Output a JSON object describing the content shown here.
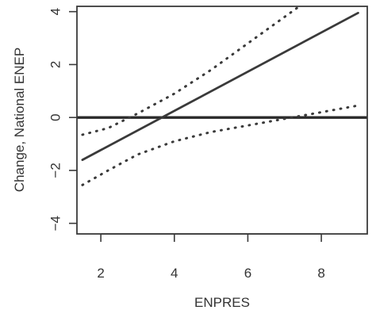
{
  "chart_data": {
    "type": "line",
    "title": "",
    "xlabel": "ENPRES",
    "ylabel": "Change, National ENEP",
    "xlim": [
      1.35,
      9.25
    ],
    "ylim": [
      -4.4,
      4.2
    ],
    "x_ticks": [
      2,
      4,
      6,
      8
    ],
    "y_ticks": [
      -4,
      -2,
      0,
      2,
      4
    ],
    "grid": false,
    "legend": "none",
    "reference_line": {
      "y": 0,
      "style": "solid"
    },
    "series": [
      {
        "style": "solid",
        "points": [
          [
            1.5,
            -1.6
          ],
          [
            9.0,
            3.95
          ]
        ]
      },
      {
        "style": "dotted",
        "points": [
          [
            1.5,
            -0.65
          ],
          [
            2.2,
            -0.4
          ],
          [
            3.0,
            0.15
          ],
          [
            4.0,
            0.9
          ],
          [
            5.0,
            1.8
          ],
          [
            6.0,
            2.8
          ],
          [
            7.0,
            3.8
          ],
          [
            7.5,
            4.3
          ]
        ]
      },
      {
        "style": "dotted",
        "points": [
          [
            1.5,
            -2.55
          ],
          [
            2.2,
            -2.0
          ],
          [
            3.0,
            -1.4
          ],
          [
            4.0,
            -0.9
          ],
          [
            5.0,
            -0.55
          ],
          [
            6.0,
            -0.3
          ],
          [
            7.0,
            -0.05
          ],
          [
            8.0,
            0.2
          ],
          [
            9.0,
            0.45
          ]
        ]
      }
    ]
  }
}
